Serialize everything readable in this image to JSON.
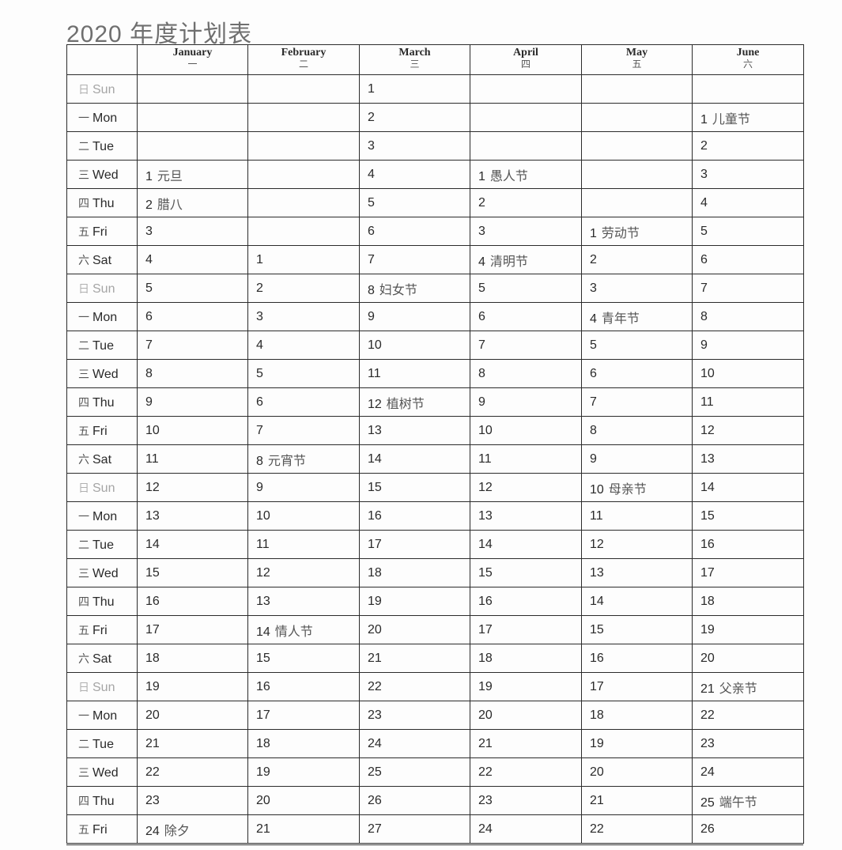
{
  "title": "2020 年度计划表",
  "months": [
    {
      "en": "January",
      "cn": "一"
    },
    {
      "en": "February",
      "cn": "二"
    },
    {
      "en": "March",
      "cn": "三"
    },
    {
      "en": "April",
      "cn": "四"
    },
    {
      "en": "May",
      "cn": "五"
    },
    {
      "en": "June",
      "cn": "六"
    }
  ],
  "rows": [
    {
      "cn": "日",
      "en": "Sun",
      "sun": true,
      "cells": [
        [
          "",
          ""
        ],
        [
          "",
          ""
        ],
        [
          "1",
          ""
        ],
        [
          "",
          ""
        ],
        [
          "",
          ""
        ],
        [
          "",
          ""
        ]
      ]
    },
    {
      "cn": "一",
      "en": "Mon",
      "sun": false,
      "cells": [
        [
          "",
          ""
        ],
        [
          "",
          ""
        ],
        [
          "2",
          ""
        ],
        [
          "",
          ""
        ],
        [
          "",
          ""
        ],
        [
          "1",
          "儿童节"
        ]
      ]
    },
    {
      "cn": "二",
      "en": "Tue",
      "sun": false,
      "cells": [
        [
          "",
          ""
        ],
        [
          "",
          ""
        ],
        [
          "3",
          ""
        ],
        [
          "",
          ""
        ],
        [
          "",
          ""
        ],
        [
          "2",
          ""
        ]
      ]
    },
    {
      "cn": "三",
      "en": "Wed",
      "sun": false,
      "cells": [
        [
          "1",
          "元旦"
        ],
        [
          "",
          ""
        ],
        [
          "4",
          ""
        ],
        [
          "1",
          "愚人节"
        ],
        [
          "",
          ""
        ],
        [
          "3",
          ""
        ]
      ]
    },
    {
      "cn": "四",
      "en": "Thu",
      "sun": false,
      "cells": [
        [
          "2",
          "腊八"
        ],
        [
          "",
          ""
        ],
        [
          "5",
          ""
        ],
        [
          "2",
          ""
        ],
        [
          "",
          ""
        ],
        [
          "4",
          ""
        ]
      ]
    },
    {
      "cn": "五",
      "en": "Fri",
      "sun": false,
      "cells": [
        [
          "3",
          ""
        ],
        [
          "",
          ""
        ],
        [
          "6",
          ""
        ],
        [
          "3",
          ""
        ],
        [
          "1",
          "劳动节"
        ],
        [
          "5",
          ""
        ]
      ]
    },
    {
      "cn": "六",
      "en": "Sat",
      "sun": false,
      "cells": [
        [
          "4",
          ""
        ],
        [
          "1",
          ""
        ],
        [
          "7",
          ""
        ],
        [
          "4",
          "清明节"
        ],
        [
          "2",
          ""
        ],
        [
          "6",
          ""
        ]
      ]
    },
    {
      "cn": "日",
      "en": "Sun",
      "sun": true,
      "cells": [
        [
          "5",
          ""
        ],
        [
          "2",
          ""
        ],
        [
          "8",
          "妇女节"
        ],
        [
          "5",
          ""
        ],
        [
          "3",
          ""
        ],
        [
          "7",
          ""
        ]
      ]
    },
    {
      "cn": "一",
      "en": "Mon",
      "sun": false,
      "cells": [
        [
          "6",
          ""
        ],
        [
          "3",
          ""
        ],
        [
          "9",
          ""
        ],
        [
          "6",
          ""
        ],
        [
          "4",
          "青年节"
        ],
        [
          "8",
          ""
        ]
      ]
    },
    {
      "cn": "二",
      "en": "Tue",
      "sun": false,
      "cells": [
        [
          "7",
          ""
        ],
        [
          "4",
          ""
        ],
        [
          "10",
          ""
        ],
        [
          "7",
          ""
        ],
        [
          "5",
          ""
        ],
        [
          "9",
          ""
        ]
      ]
    },
    {
      "cn": "三",
      "en": "Wed",
      "sun": false,
      "cells": [
        [
          "8",
          ""
        ],
        [
          "5",
          ""
        ],
        [
          "11",
          ""
        ],
        [
          "8",
          ""
        ],
        [
          "6",
          ""
        ],
        [
          "10",
          ""
        ]
      ]
    },
    {
      "cn": "四",
      "en": "Thu",
      "sun": false,
      "cells": [
        [
          "9",
          ""
        ],
        [
          "6",
          ""
        ],
        [
          "12",
          "植树节"
        ],
        [
          "9",
          ""
        ],
        [
          "7",
          ""
        ],
        [
          "11",
          ""
        ]
      ]
    },
    {
      "cn": "五",
      "en": "Fri",
      "sun": false,
      "cells": [
        [
          "10",
          ""
        ],
        [
          "7",
          ""
        ],
        [
          "13",
          ""
        ],
        [
          "10",
          ""
        ],
        [
          "8",
          ""
        ],
        [
          "12",
          ""
        ]
      ]
    },
    {
      "cn": "六",
      "en": "Sat",
      "sun": false,
      "cells": [
        [
          "11",
          ""
        ],
        [
          "8",
          "元宵节"
        ],
        [
          "14",
          ""
        ],
        [
          "11",
          ""
        ],
        [
          "9",
          ""
        ],
        [
          "13",
          ""
        ]
      ]
    },
    {
      "cn": "日",
      "en": "Sun",
      "sun": true,
      "cells": [
        [
          "12",
          ""
        ],
        [
          "9",
          ""
        ],
        [
          "15",
          ""
        ],
        [
          "12",
          ""
        ],
        [
          "10",
          "母亲节"
        ],
        [
          "14",
          ""
        ]
      ]
    },
    {
      "cn": "一",
      "en": "Mon",
      "sun": false,
      "cells": [
        [
          "13",
          ""
        ],
        [
          "10",
          ""
        ],
        [
          "16",
          ""
        ],
        [
          "13",
          ""
        ],
        [
          "11",
          ""
        ],
        [
          "15",
          ""
        ]
      ]
    },
    {
      "cn": "二",
      "en": "Tue",
      "sun": false,
      "cells": [
        [
          "14",
          ""
        ],
        [
          "11",
          ""
        ],
        [
          "17",
          ""
        ],
        [
          "14",
          ""
        ],
        [
          "12",
          ""
        ],
        [
          "16",
          ""
        ]
      ]
    },
    {
      "cn": "三",
      "en": "Wed",
      "sun": false,
      "cells": [
        [
          "15",
          ""
        ],
        [
          "12",
          ""
        ],
        [
          "18",
          ""
        ],
        [
          "15",
          ""
        ],
        [
          "13",
          ""
        ],
        [
          "17",
          ""
        ]
      ]
    },
    {
      "cn": "四",
      "en": "Thu",
      "sun": false,
      "cells": [
        [
          "16",
          ""
        ],
        [
          "13",
          ""
        ],
        [
          "19",
          ""
        ],
        [
          "16",
          ""
        ],
        [
          "14",
          ""
        ],
        [
          "18",
          ""
        ]
      ]
    },
    {
      "cn": "五",
      "en": "Fri",
      "sun": false,
      "cells": [
        [
          "17",
          ""
        ],
        [
          "14",
          "情人节"
        ],
        [
          "20",
          ""
        ],
        [
          "17",
          ""
        ],
        [
          "15",
          ""
        ],
        [
          "19",
          ""
        ]
      ]
    },
    {
      "cn": "六",
      "en": "Sat",
      "sun": false,
      "cells": [
        [
          "18",
          ""
        ],
        [
          "15",
          ""
        ],
        [
          "21",
          ""
        ],
        [
          "18",
          ""
        ],
        [
          "16",
          ""
        ],
        [
          "20",
          ""
        ]
      ]
    },
    {
      "cn": "日",
      "en": "Sun",
      "sun": true,
      "cells": [
        [
          "19",
          ""
        ],
        [
          "16",
          ""
        ],
        [
          "22",
          ""
        ],
        [
          "19",
          ""
        ],
        [
          "17",
          ""
        ],
        [
          "21",
          "父亲节"
        ]
      ]
    },
    {
      "cn": "一",
      "en": "Mon",
      "sun": false,
      "cells": [
        [
          "20",
          ""
        ],
        [
          "17",
          ""
        ],
        [
          "23",
          ""
        ],
        [
          "20",
          ""
        ],
        [
          "18",
          ""
        ],
        [
          "22",
          ""
        ]
      ]
    },
    {
      "cn": "二",
      "en": "Tue",
      "sun": false,
      "cells": [
        [
          "21",
          ""
        ],
        [
          "18",
          ""
        ],
        [
          "24",
          ""
        ],
        [
          "21",
          ""
        ],
        [
          "19",
          ""
        ],
        [
          "23",
          ""
        ]
      ]
    },
    {
      "cn": "三",
      "en": "Wed",
      "sun": false,
      "cells": [
        [
          "22",
          ""
        ],
        [
          "19",
          ""
        ],
        [
          "25",
          ""
        ],
        [
          "22",
          ""
        ],
        [
          "20",
          ""
        ],
        [
          "24",
          ""
        ]
      ]
    },
    {
      "cn": "四",
      "en": "Thu",
      "sun": false,
      "cells": [
        [
          "23",
          ""
        ],
        [
          "20",
          ""
        ],
        [
          "26",
          ""
        ],
        [
          "23",
          ""
        ],
        [
          "21",
          ""
        ],
        [
          "25",
          "端午节"
        ]
      ]
    },
    {
      "cn": "五",
      "en": "Fri",
      "sun": false,
      "cells": [
        [
          "24",
          "除夕"
        ],
        [
          "21",
          ""
        ],
        [
          "27",
          ""
        ],
        [
          "24",
          ""
        ],
        [
          "22",
          ""
        ],
        [
          "26",
          ""
        ]
      ]
    }
  ]
}
